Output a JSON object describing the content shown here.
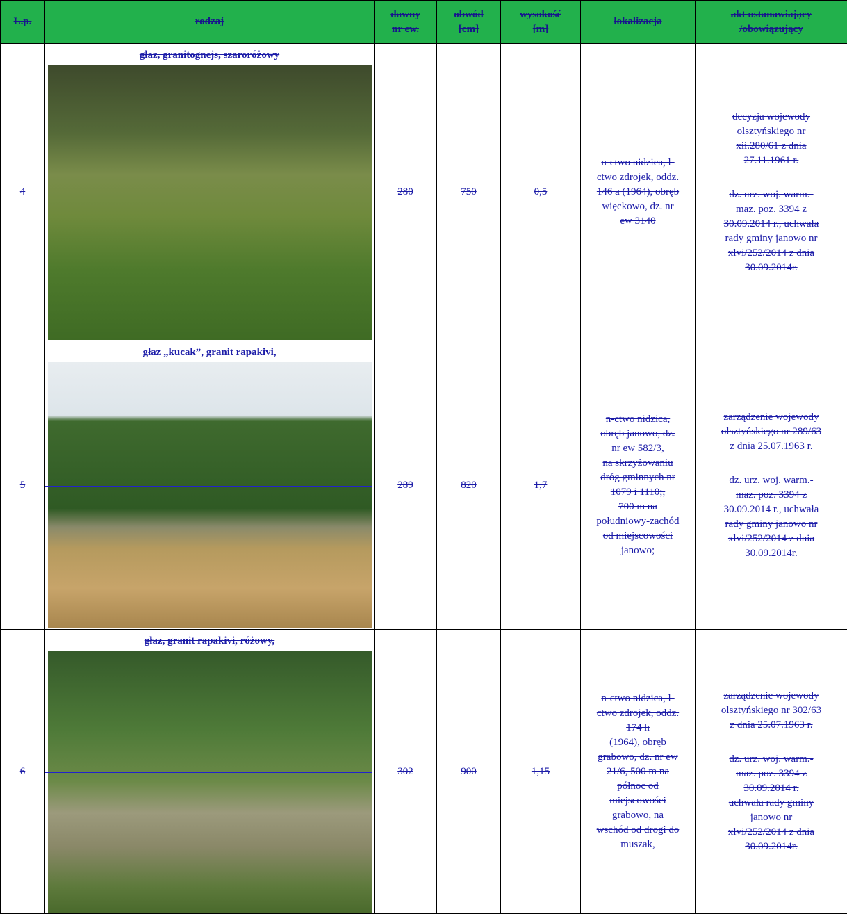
{
  "table": {
    "header": [
      [
        "L.p."
      ],
      [
        "rodzaj"
      ],
      [
        "dawny",
        "nr ew."
      ],
      [
        "obwód",
        "[cm]"
      ],
      [
        "wysokość",
        "[m]"
      ],
      [
        "lokalizacja"
      ],
      [
        "akt ustanawiający",
        "/obowiązujący"
      ]
    ],
    "rows": [
      {
        "lp": "4",
        "rodzaj": "głaz, granitognejs, szaroróżowy",
        "dawny": "280",
        "obwod": "750",
        "wysokosc": "0,5",
        "lokalizacja": [
          "n-ctwo nidzica, l-",
          "ctwo zdrojek, oddz.",
          "146 a (1964), obręb",
          "więckowo, dz. nr",
          "ew 3140"
        ],
        "akt": [
          [
            "decyzja wojewody",
            "olsztyńskiego nr",
            "xii.280/61 z dnia",
            "27.11.1961 r."
          ],
          [
            "dz. urz. woj. warm.-",
            "maz. poz. 3394 z",
            "30.09.2014 r., uchwała",
            "rady gminy janowo nr",
            "xlvi/252/2014 z dnia",
            "30.09.2014r."
          ]
        ]
      },
      {
        "lp": "5",
        "rodzaj": "głaz „kucak”, granit rapakivi,",
        "dawny": "289",
        "obwod": "820",
        "wysokosc": "1,7",
        "lokalizacja": [
          "n-ctwo nidzica,",
          "obręb janowo, dz.",
          "nr ew 582/3,",
          "na skrzyżowaniu",
          "dróg gminnych nr",
          "1079 i 1110;,",
          "700 m na",
          "południowy-zachód",
          "od miejscowości",
          "janowo;"
        ],
        "akt": [
          [
            "zarządzenie wojewody",
            "olsztyńskiego nr 289/63",
            "z dnia 25.07.1963 r."
          ],
          [
            "dz. urz. woj. warm.-",
            "maz. poz. 3394 z",
            "30.09.2014 r., uchwała",
            "rady gminy janowo nr",
            "xlvi/252/2014 z dnia",
            "30.09.2014r."
          ]
        ]
      },
      {
        "lp": "6",
        "rodzaj": "głaz, granit rapakivi, różowy,",
        "dawny": "302",
        "obwod": "900",
        "wysokosc": "1,15",
        "lokalizacja": [
          "n-ctwo nidzica, l-",
          "ctwo zdrojek, oddz.",
          "174 h",
          "(1964), obręb",
          "grabowo, dz. nr ew",
          "21/6, 500 m na",
          "północ od",
          "miejscowości",
          "grabowo, na",
          "wschód od drogi do",
          "muszak,"
        ],
        "akt": [
          [
            "zarządzenie wojewody",
            "olsztyńskiego nr 302/63",
            "z dnia 25.07.1963 r."
          ],
          [
            "dz. urz. woj. warm.-",
            "maz. poz. 3394 z",
            "30.09.2014 r.",
            "uchwała rady gminy",
            "janowo nr",
            "xlvi/252/2014 z dnia",
            "30.09.2014r."
          ]
        ]
      }
    ]
  }
}
